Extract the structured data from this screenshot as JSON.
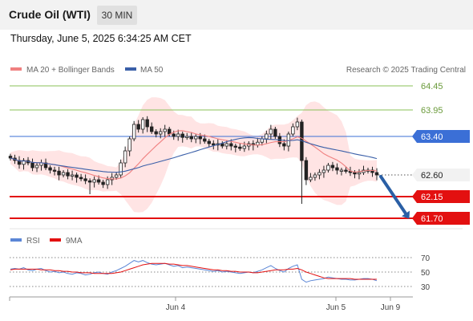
{
  "header": {
    "title": "Crude Oil (WTI)",
    "timeframe": "30 MIN",
    "timestamp": "Thursday, June 5, 2025 6:34:25 AM CET"
  },
  "legend": {
    "ma20": "MA 20 + Bollinger Bands",
    "ma50": "MA 50",
    "credit": "Research © 2025 Trading Central",
    "rsi": "RSI",
    "ma9": "9MA"
  },
  "colors": {
    "ma20": "#f08080",
    "ma50": "#3a5fa8",
    "bollinger_fill": "#ffe1e1",
    "green_level": "#88c057",
    "blue_level": "#3b6fd6",
    "red_level": "#e31010",
    "candle": "#222222",
    "arrow": "#2a5fa5",
    "rsi": "#5b86d6",
    "rsi_ma": "#e31010"
  },
  "chart_data": [
    {
      "type": "candlestick",
      "y_range": [
        61.55,
        64.6
      ],
      "x_labels": [
        "Jun 4",
        "Jun 5",
        "Jun 9"
      ],
      "price_levels": [
        {
          "value": "64.45",
          "kind": "resistance",
          "style": "green"
        },
        {
          "value": "63.95",
          "kind": "resistance",
          "style": "green"
        },
        {
          "value": "63.40",
          "kind": "pivot",
          "style": "blue"
        },
        {
          "value": "62.60",
          "kind": "last",
          "style": "dotted"
        },
        {
          "value": "62.15",
          "kind": "target",
          "style": "red"
        },
        {
          "value": "61.70",
          "kind": "target",
          "style": "red"
        }
      ],
      "forecast": {
        "from": 62.6,
        "to": 61.7,
        "direction": "down"
      },
      "close_series": [
        62.95,
        62.9,
        62.82,
        62.9,
        62.85,
        62.75,
        62.8,
        62.85,
        62.75,
        62.7,
        62.68,
        62.6,
        62.65,
        62.58,
        62.6,
        62.55,
        62.52,
        62.48,
        62.45,
        62.5,
        62.45,
        62.4,
        62.5,
        62.55,
        62.6,
        62.85,
        63.1,
        63.35,
        63.65,
        63.55,
        63.75,
        63.6,
        63.5,
        63.45,
        63.5,
        63.55,
        63.45,
        63.4,
        63.45,
        63.38,
        63.4,
        63.35,
        63.4,
        63.35,
        63.3,
        63.25,
        63.22,
        63.25,
        63.2,
        63.25,
        63.2,
        63.18,
        63.15,
        63.2,
        63.25,
        63.22,
        63.28,
        63.35,
        63.45,
        63.55,
        63.4,
        63.25,
        63.2,
        63.45,
        63.6,
        63.7,
        62.9,
        62.5,
        62.55,
        62.6,
        62.65,
        62.7,
        62.8,
        62.75,
        62.7,
        62.7,
        62.68,
        62.65,
        62.62,
        62.65,
        62.7,
        62.7,
        62.65,
        62.6
      ]
    },
    {
      "type": "line",
      "name": "RSI",
      "y_ticks": [
        30,
        50,
        70
      ],
      "y_range": [
        24,
        76
      ],
      "rsi": [
        54,
        55,
        54,
        56,
        53,
        52,
        54,
        55,
        52,
        50,
        51,
        49,
        50,
        48,
        47,
        49,
        48,
        46,
        47,
        49,
        50,
        48,
        47,
        50,
        52,
        55,
        58,
        62,
        66,
        64,
        66,
        63,
        61,
        60,
        61,
        62,
        60,
        58,
        59,
        56,
        57,
        56,
        55,
        54,
        53,
        52,
        51,
        52,
        50,
        51,
        50,
        49,
        48,
        49,
        50,
        49,
        51,
        53,
        56,
        59,
        55,
        52,
        50,
        55,
        58,
        60,
        40,
        36,
        38,
        39,
        40,
        41,
        43,
        42,
        41,
        40,
        40,
        39,
        39,
        40,
        41,
        41,
        40,
        38
      ],
      "ma9": [
        53,
        54,
        54,
        54,
        54,
        54,
        54,
        53,
        53,
        53,
        52,
        52,
        51,
        51,
        50,
        50,
        49,
        49,
        49,
        48,
        48,
        48,
        48,
        48,
        49,
        50,
        52,
        54,
        56,
        58,
        60,
        61,
        62,
        62,
        62,
        62,
        61,
        61,
        60,
        59,
        59,
        58,
        57,
        56,
        55,
        54,
        53,
        53,
        52,
        52,
        51,
        51,
        50,
        50,
        50,
        49,
        49,
        50,
        51,
        52,
        53,
        53,
        53,
        54,
        54,
        55,
        53,
        50,
        48,
        46,
        44,
        42,
        41,
        41,
        41,
        41,
        41,
        41,
        40,
        40,
        40,
        40,
        40,
        40
      ]
    }
  ]
}
